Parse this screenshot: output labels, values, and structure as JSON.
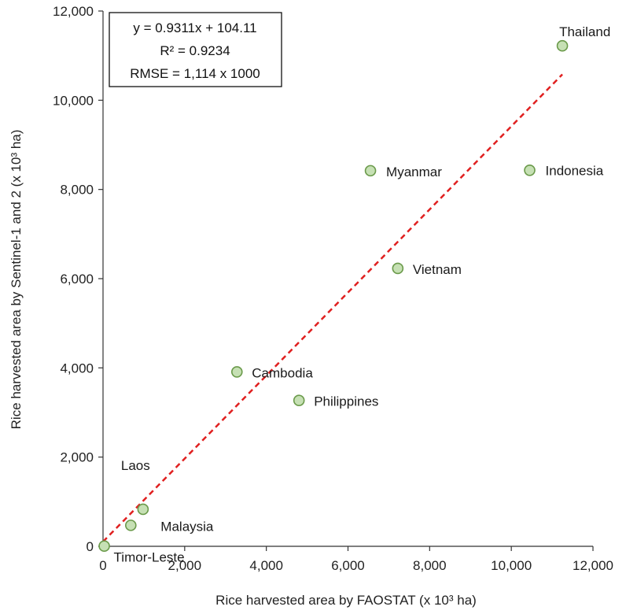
{
  "chart_data": {
    "type": "scatter",
    "xlabel": "Rice harvested area by FAOSTAT (x 10³ ha)",
    "ylabel": "Rice harvested area by Sentinel-1 and 2 (x 10³ ha)",
    "xlim": [
      0,
      12000
    ],
    "ylim": [
      0,
      12000
    ],
    "xticks": [
      "0",
      "2,000",
      "4,000",
      "6,000",
      "8,000",
      "10,000",
      "12,000"
    ],
    "yticks": [
      "0",
      "2,000",
      "4,000",
      "6,000",
      "8,000",
      "10,000",
      "12,000"
    ],
    "grid": false,
    "legend": "none",
    "points": [
      {
        "label": "Thailand",
        "x": 11250,
        "y": 11220
      },
      {
        "label": "Indonesia",
        "x": 10450,
        "y": 8430
      },
      {
        "label": "Myanmar",
        "x": 6550,
        "y": 8420
      },
      {
        "label": "Vietnam",
        "x": 7220,
        "y": 6230
      },
      {
        "label": "Cambodia",
        "x": 3280,
        "y": 3910
      },
      {
        "label": "Philippines",
        "x": 4800,
        "y": 3270
      },
      {
        "label": "Laos",
        "x": 980,
        "y": 830
      },
      {
        "label": "Malaysia",
        "x": 680,
        "y": 470
      },
      {
        "label": "Timor-Leste",
        "x": 30,
        "y": 5
      }
    ],
    "trendline": {
      "slope": 0.9311,
      "intercept": 104.11,
      "x_range": [
        0,
        11250
      ],
      "color": "#e02020",
      "style": "dashed"
    },
    "stats_box": {
      "equation": "y = 0.9311x + 104.11",
      "r2": "R² = 0.9234",
      "rmse": "RMSE = 1,114 x 1000"
    },
    "colors": {
      "marker_fill": "#c6e0b4",
      "marker_stroke": "#6a9a4a",
      "axis": "#333333"
    }
  }
}
